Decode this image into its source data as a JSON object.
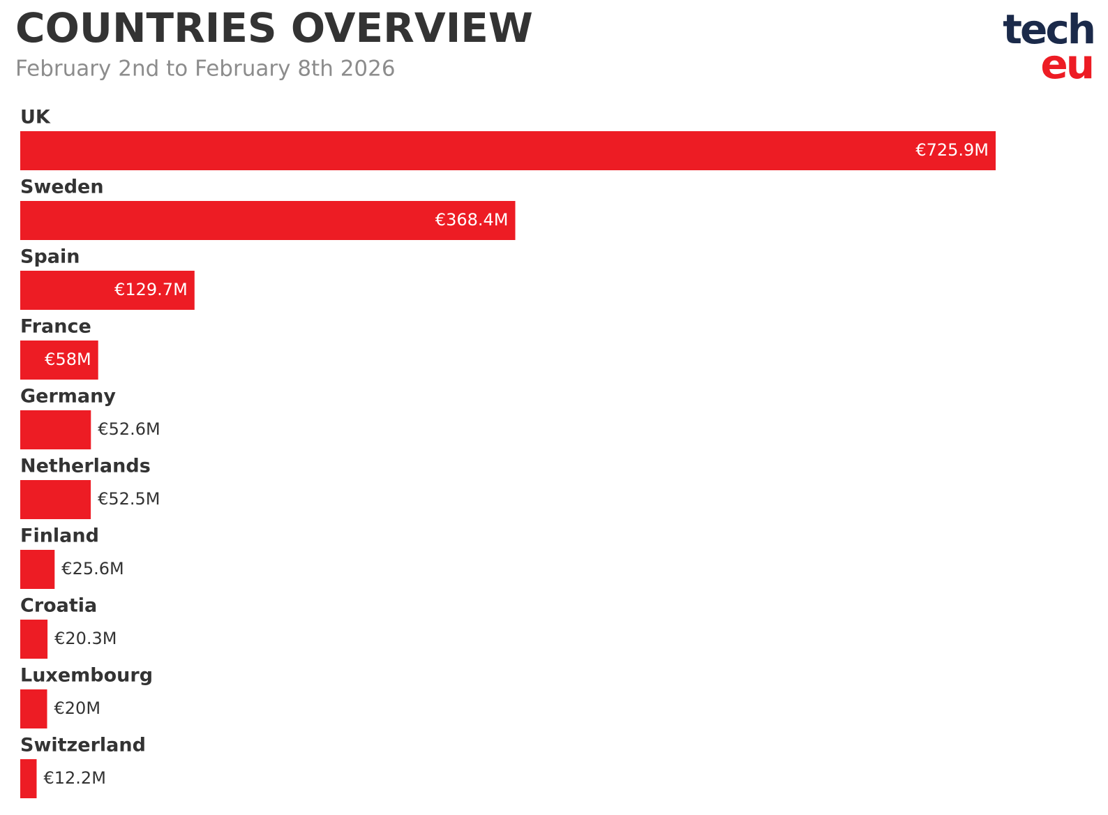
{
  "chart_data": {
    "type": "bar",
    "orientation": "horizontal",
    "title": "COUNTRIES OVERVIEW",
    "subtitle": "February 2nd to February 8th 2026",
    "categories": [
      "UK",
      "Sweden",
      "Spain",
      "France",
      "Germany",
      "Netherlands",
      "Finland",
      "Croatia",
      "Luxembourg",
      "Switzerland"
    ],
    "values": [
      725.9,
      368.4,
      129.7,
      58,
      52.6,
      52.5,
      25.6,
      20.3,
      20,
      12.2
    ],
    "value_labels": [
      "€725.9M",
      "€368.4M",
      "€129.7M",
      "€58M",
      "€52.6M",
      "€52.5M",
      "€25.6M",
      "€20.3M",
      "€20M",
      "€12.2M"
    ],
    "color": "#ed1c24"
  },
  "logo": {
    "top": "tech",
    "bottom": "eu"
  }
}
